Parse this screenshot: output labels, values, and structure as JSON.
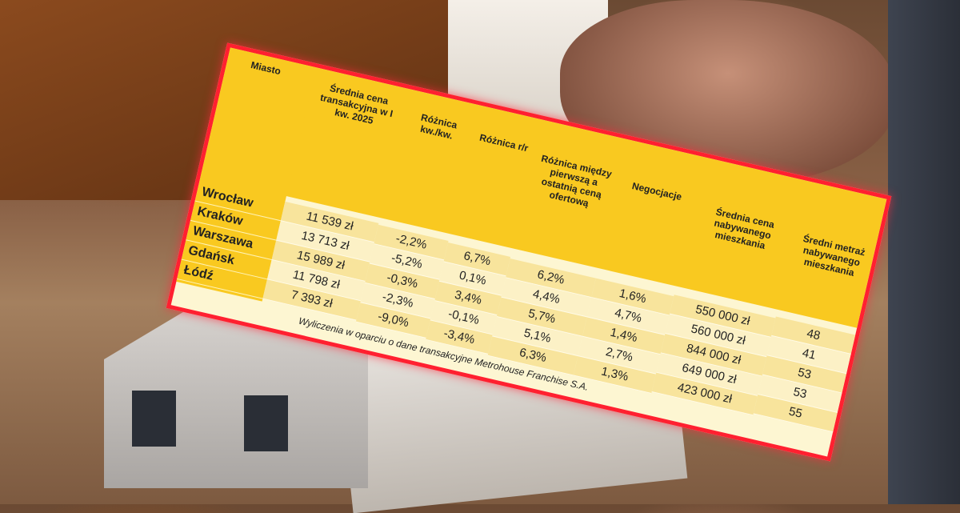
{
  "table": {
    "headers": [
      "Miasto",
      "Średnia cena transakcyjna w I kw. 2025",
      "Różnica kw./kw.",
      "Różnica r/r",
      "Różnica między pierwszą a ostatnią ceną ofertową",
      "Negocjacje",
      "Średnia cena nabywanego mieszkania",
      "Średni metraż nabywanego mieszkania"
    ],
    "rows": [
      {
        "city": "Wrocław",
        "values": [
          "11 539 zł",
          "-2,2%",
          "6,7%",
          "6,2%",
          "1,6%",
          "550 000 zł",
          "48"
        ]
      },
      {
        "city": "Kraków",
        "values": [
          "13 713 zł",
          "-5,2%",
          "0,1%",
          "4,4%",
          "4,7%",
          "560 000 zł",
          "41"
        ]
      },
      {
        "city": "Warszawa",
        "values": [
          "15 989 zł",
          "-0,3%",
          "3,4%",
          "5,7%",
          "1,4%",
          "844 000 zł",
          "53"
        ]
      },
      {
        "city": "Gdańsk",
        "values": [
          "11 798 zł",
          "-2,3%",
          "-0,1%",
          "5,1%",
          "2,7%",
          "649 000 zł",
          "53"
        ]
      },
      {
        "city": "Łódź",
        "values": [
          "7 393 zł",
          "-9,0%",
          "-3,4%",
          "6,3%",
          "1,3%",
          "423 000 zł",
          "55"
        ]
      }
    ],
    "footnote": "Wyliczenia w oparciu o dane transakcyjne Metrohouse Franchise S.A."
  },
  "colors": {
    "header": "#f9c920",
    "border": "#ff2030",
    "row_light": "#fcf1c6",
    "row_dark": "#f8e49c"
  }
}
